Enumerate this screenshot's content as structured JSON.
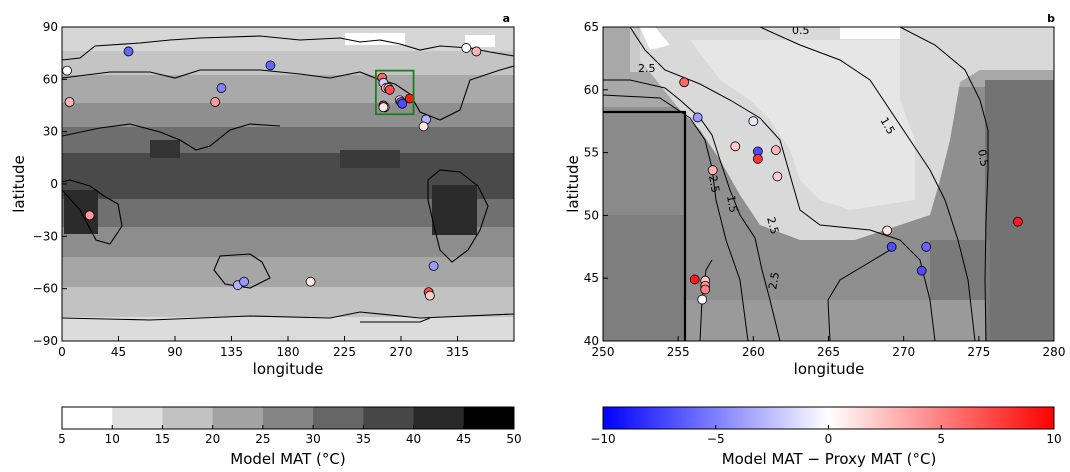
{
  "chart_data": [
    {
      "type": "heatmap",
      "panel_label": "a",
      "xlabel": "longitude",
      "ylabel": "latitude",
      "xlim": [
        0,
        360
      ],
      "ylim": [
        -90,
        90
      ],
      "xticks": [
        0,
        45,
        90,
        135,
        180,
        225,
        270,
        315
      ],
      "yticks": [
        -90,
        -60,
        -30,
        0,
        30,
        60,
        90
      ],
      "highlight_box": {
        "lon": [
          250,
          280
        ],
        "lat": [
          40,
          65
        ],
        "color": "#1a7f1a"
      },
      "description_grid": "Model MAT shaded in grayscale, warmest near equator (~35-45), coolest at poles (~10-15)",
      "proxy_points": [
        {
          "lon": 4,
          "lat": 65,
          "diff": 0
        },
        {
          "lon": 6,
          "lat": 47,
          "diff": 3
        },
        {
          "lon": 53,
          "lat": 76,
          "diff": -6
        },
        {
          "lon": 22,
          "lat": -18,
          "diff": 4
        },
        {
          "lon": 122,
          "lat": 47,
          "diff": 4
        },
        {
          "lon": 127,
          "lat": 55,
          "diff": -5
        },
        {
          "lon": 166,
          "lat": 68,
          "diff": -6
        },
        {
          "lon": 198,
          "lat": -56,
          "diff": 1
        },
        {
          "lon": 140,
          "lat": -58,
          "diff": -3
        },
        {
          "lon": 145,
          "lat": -56,
          "diff": -4
        },
        {
          "lon": 255,
          "lat": 61,
          "diff": 6
        },
        {
          "lon": 256,
          "lat": 58,
          "diff": -2
        },
        {
          "lon": 258,
          "lat": 55,
          "diff": 3
        },
        {
          "lon": 260,
          "lat": 55,
          "diff": 2
        },
        {
          "lon": 261,
          "lat": 54,
          "diff": 7
        },
        {
          "lon": 256,
          "lat": 45,
          "diff": 8
        },
        {
          "lon": 257,
          "lat": 44,
          "diff": 0
        },
        {
          "lon": 256,
          "lat": 44,
          "diff": 1
        },
        {
          "lon": 269,
          "lat": 48,
          "diff": 1
        },
        {
          "lon": 270,
          "lat": 47,
          "diff": -6
        },
        {
          "lon": 271,
          "lat": 46,
          "diff": -7
        },
        {
          "lon": 277,
          "lat": 49,
          "diff": 9
        },
        {
          "lon": 290,
          "lat": 37,
          "diff": -3
        },
        {
          "lon": 288,
          "lat": 33,
          "diff": 1
        },
        {
          "lon": 296,
          "lat": -47,
          "diff": -4
        },
        {
          "lon": 292,
          "lat": -62,
          "diff": 7
        },
        {
          "lon": 293,
          "lat": -64,
          "diff": 2
        },
        {
          "lon": 322,
          "lat": 78,
          "diff": 0
        },
        {
          "lon": 330,
          "lat": 76,
          "diff": 3
        }
      ]
    },
    {
      "type": "heatmap",
      "panel_label": "b",
      "xlabel": "longitude",
      "ylabel": "latitude",
      "xlim": [
        250,
        280
      ],
      "ylim": [
        40,
        65
      ],
      "xticks": [
        250,
        255,
        260,
        265,
        270,
        275,
        280
      ],
      "yticks": [
        40,
        45,
        50,
        55,
        60,
        65
      ],
      "contour_labels": [
        "0.5",
        "2.5",
        "1.5",
        "0.5",
        "2.5",
        "1.5",
        "2.5",
        "2.5"
      ],
      "proxy_points": [
        {
          "lon": 255.4,
          "lat": 60.6,
          "diff": 6
        },
        {
          "lon": 256.3,
          "lat": 57.8,
          "diff": -4
        },
        {
          "lon": 260.0,
          "lat": 57.5,
          "diff": -1
        },
        {
          "lon": 258.8,
          "lat": 55.5,
          "diff": 2
        },
        {
          "lon": 260.3,
          "lat": 55.1,
          "diff": -7
        },
        {
          "lon": 260.3,
          "lat": 54.5,
          "diff": 8
        },
        {
          "lon": 261.5,
          "lat": 55.2,
          "diff": 3
        },
        {
          "lon": 257.3,
          "lat": 53.6,
          "diff": 3
        },
        {
          "lon": 261.6,
          "lat": 53.1,
          "diff": 2
        },
        {
          "lon": 268.9,
          "lat": 48.8,
          "diff": 1
        },
        {
          "lon": 269.2,
          "lat": 47.5,
          "diff": -7
        },
        {
          "lon": 271.5,
          "lat": 47.5,
          "diff": -6
        },
        {
          "lon": 271.2,
          "lat": 45.6,
          "diff": -7
        },
        {
          "lon": 277.6,
          "lat": 49.5,
          "diff": 9
        },
        {
          "lon": 256.1,
          "lat": 44.9,
          "diff": 9
        },
        {
          "lon": 256.8,
          "lat": 44.8,
          "diff": 2
        },
        {
          "lon": 256.8,
          "lat": 44.4,
          "diff": 4
        },
        {
          "lon": 256.8,
          "lat": 44.1,
          "diff": 5
        },
        {
          "lon": 256.6,
          "lat": 43.3,
          "diff": 0
        }
      ]
    }
  ],
  "colorbar_left": {
    "label": "Model MAT (°C)",
    "label_text": "Model MAT ($^\\circ$C)",
    "ticks": [
      "5",
      "10",
      "15",
      "20",
      "25",
      "30",
      "35",
      "40",
      "45",
      "50"
    ],
    "colors": [
      "#ffffff",
      "#e0e0e0",
      "#c2c2c2",
      "#a3a3a3",
      "#858585",
      "#666666",
      "#474747",
      "#292929",
      "#000000"
    ]
  },
  "colorbar_right": {
    "label": "Model MAT − Proxy MAT (°C)",
    "ticks": [
      "−10",
      "−5",
      "0",
      "5",
      "10"
    ],
    "cmap": [
      "#0000ff",
      "#ffffff",
      "#ff0000"
    ]
  }
}
